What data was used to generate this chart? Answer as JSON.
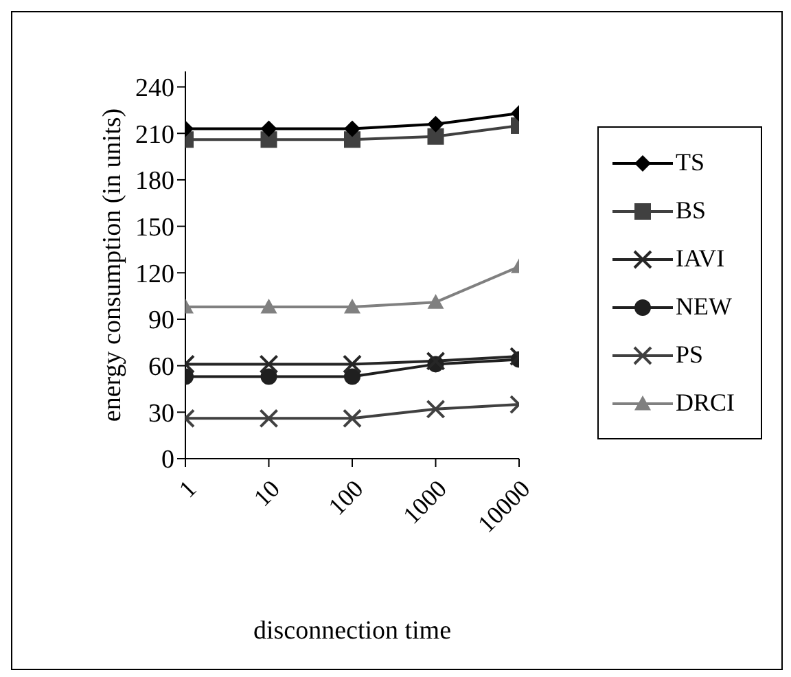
{
  "chart_data": {
    "type": "line",
    "xlabel": "disconnection time",
    "ylabel": "energy consumption (in units)",
    "categories": [
      "1",
      "10",
      "100",
      "1000",
      "10000"
    ],
    "ylim": [
      0,
      250
    ],
    "yticks": [
      0,
      30,
      60,
      90,
      120,
      150,
      180,
      210,
      240
    ],
    "grid": false,
    "legend": "right",
    "line_style": "solid",
    "series": [
      {
        "name": "TS",
        "color": "#000000",
        "marker": "diamond",
        "values": [
          213,
          213,
          213,
          216,
          223
        ]
      },
      {
        "name": "BS",
        "color": "#404040",
        "marker": "square",
        "values": [
          206,
          206,
          206,
          208,
          215
        ]
      },
      {
        "name": "IAVI",
        "color": "#262626",
        "marker": "cross",
        "values": [
          61,
          61,
          61,
          63,
          66
        ]
      },
      {
        "name": "NEW",
        "color": "#1f1f1f",
        "marker": "circle",
        "values": [
          53,
          53,
          53,
          61,
          64
        ]
      },
      {
        "name": "PS",
        "color": "#404040",
        "marker": "cross",
        "values": [
          26,
          26,
          26,
          32,
          35
        ]
      },
      {
        "name": "DRCI",
        "color": "#808080",
        "marker": "triangle",
        "values": [
          98,
          98,
          98,
          101,
          124
        ]
      }
    ]
  }
}
